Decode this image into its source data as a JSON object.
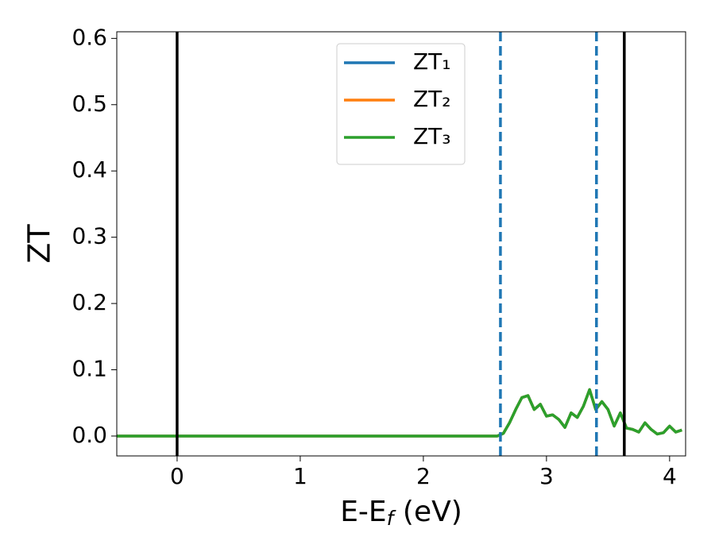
{
  "chart_data": {
    "type": "line",
    "ylabel": "ZT",
    "xlabel": [
      "E-E",
      "f",
      " (eV)"
    ],
    "x": [
      -0.5,
      0,
      0.5,
      1,
      1.5,
      2,
      2.5,
      2.6,
      2.65,
      2.7,
      2.75,
      2.8,
      2.85,
      2.9,
      2.95,
      3.0,
      3.05,
      3.1,
      3.15,
      3.2,
      3.25,
      3.3,
      3.35,
      3.4,
      3.45,
      3.5,
      3.55,
      3.6,
      3.65,
      3.7,
      3.75,
      3.8,
      3.85,
      3.9,
      3.95,
      4.0,
      4.05,
      4.1
    ],
    "series": [
      {
        "name": "ZT₁",
        "color": "#1f77b4",
        "values": [
          0,
          0,
          0,
          0,
          0,
          0,
          0,
          0,
          0.004,
          0.02,
          0.04,
          0.058,
          0.061,
          0.04,
          0.048,
          0.03,
          0.032,
          0.025,
          0.013,
          0.035,
          0.028,
          0.045,
          0.07,
          0.04,
          0.052,
          0.04,
          0.015,
          0.035,
          0.012,
          0.01,
          0.006,
          0.02,
          0.01,
          0.003,
          0.005,
          0.015,
          0.006,
          0.009
        ]
      },
      {
        "name": "ZT₂",
        "color": "#ff7f0e",
        "values": [
          0,
          0,
          0,
          0,
          0,
          0,
          0,
          0,
          0.004,
          0.02,
          0.04,
          0.058,
          0.061,
          0.04,
          0.048,
          0.03,
          0.032,
          0.025,
          0.013,
          0.035,
          0.028,
          0.045,
          0.07,
          0.04,
          0.052,
          0.04,
          0.015,
          0.035,
          0.012,
          0.01,
          0.006,
          0.02,
          0.01,
          0.003,
          0.005,
          0.015,
          0.006,
          0.009
        ]
      },
      {
        "name": "ZT₃",
        "color": "#2ca02c",
        "values": [
          0,
          0,
          0,
          0,
          0,
          0,
          0,
          0,
          0.004,
          0.02,
          0.04,
          0.058,
          0.061,
          0.04,
          0.048,
          0.03,
          0.032,
          0.025,
          0.013,
          0.035,
          0.028,
          0.045,
          0.07,
          0.04,
          0.052,
          0.04,
          0.015,
          0.035,
          0.012,
          0.01,
          0.006,
          0.02,
          0.01,
          0.003,
          0.005,
          0.015,
          0.006,
          0.009
        ]
      }
    ],
    "vlines": [
      {
        "x": 0,
        "color": "#000000",
        "style": "solid"
      },
      {
        "x": 2.626,
        "color": "#1f77b4",
        "style": "dashed"
      },
      {
        "x": 3.406,
        "color": "#1f77b4",
        "style": "dashed"
      },
      {
        "x": 3.632,
        "color": "#000000",
        "style": "solid"
      }
    ],
    "xlim": [
      -0.49,
      4.13
    ],
    "ylim": [
      -0.03,
      0.61
    ],
    "xticks": [
      0,
      1,
      2,
      3,
      4
    ],
    "yticks": [
      {
        "value": 0,
        "label": "0.0"
      },
      0.1,
      0.2,
      0.3,
      0.4,
      0.5,
      0.6
    ],
    "legend": "upper center"
  }
}
